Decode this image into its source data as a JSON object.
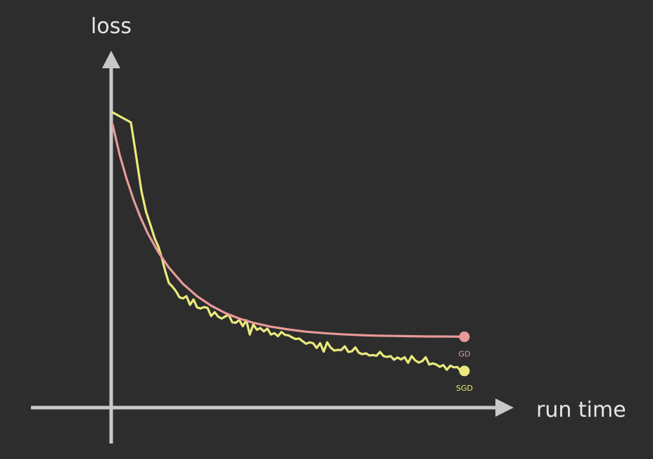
{
  "chart_data": {
    "type": "line",
    "title": "",
    "xlabel": "run time",
    "ylabel": "loss",
    "xlim": [
      0,
      100
    ],
    "ylim": [
      0,
      100
    ],
    "grid": false,
    "legend": "none",
    "background_color": "#2d2d2d",
    "axis_color": "#c8c8c8",
    "series": [
      {
        "name": "GD",
        "color": "#e89a9a",
        "x": [
          0,
          2,
          4,
          6,
          8,
          10,
          13,
          16,
          20,
          24,
          28,
          32,
          36,
          40,
          45,
          50,
          55,
          60,
          65,
          70,
          75,
          80,
          85,
          90,
          95,
          100
        ],
        "y": [
          94.8,
          84.0,
          75.3,
          67.8,
          61.4,
          55.9,
          49.2,
          43.7,
          37.9,
          33.5,
          30.1,
          27.5,
          25.5,
          24.0,
          22.6,
          21.6,
          20.8,
          20.3,
          19.9,
          19.6,
          19.4,
          19.3,
          19.2,
          19.1,
          19.1,
          19.0
        ],
        "endpoint_marker": "dot"
      },
      {
        "name": "SGD",
        "color": "#eaea7c",
        "x": [
          0,
          5.2,
          6.2,
          7.2,
          8.2,
          9.5,
          11,
          12,
          13,
          14,
          15,
          16,
          17,
          18,
          19,
          20,
          21,
          22,
          23,
          24,
          25,
          26,
          27,
          28,
          29,
          30,
          31,
          32,
          33,
          34,
          35,
          36,
          37,
          38,
          39,
          40,
          41,
          42,
          43,
          44,
          45,
          46,
          47,
          48,
          49,
          50,
          51,
          52,
          53,
          54,
          55,
          56,
          57,
          58,
          59,
          60,
          61,
          62,
          63,
          64,
          65,
          66,
          67,
          68,
          69,
          70,
          71,
          72,
          73,
          74,
          75,
          76,
          77,
          78,
          79,
          80,
          81,
          82,
          83,
          84,
          85,
          86,
          87,
          88,
          89,
          90,
          91,
          92,
          93,
          94,
          95,
          96,
          97,
          98,
          99,
          100
        ],
        "y": [
          99.1,
          95.5,
          87.6,
          79.3,
          71.0,
          63.7,
          58.0,
          54.0,
          51.2,
          47.1,
          42.3,
          38.2,
          36.9,
          35.3,
          33.1,
          32.7,
          33.5,
          30.4,
          32.3,
          29.5,
          29.1,
          29.6,
          29.3,
          26.4,
          27.8,
          26.2,
          25.5,
          26.2,
          26.9,
          24.2,
          24.0,
          25.0,
          22.8,
          24.9,
          19.8,
          23.4,
          21.5,
          22.1,
          20.9,
          21.9,
          19.8,
          20.3,
          19.2,
          20.7,
          19.7,
          19.5,
          18.8,
          18.2,
          18.4,
          17.4,
          16.5,
          17.0,
          16.7,
          15.0,
          16.7,
          13.7,
          17.0,
          15.1,
          14.1,
          14.3,
          14.3,
          15.6,
          13.6,
          13.8,
          15.2,
          13.3,
          12.8,
          13.1,
          12.3,
          12.5,
          12.2,
          13.6,
          12.1,
          11.8,
          12.1,
          10.8,
          11.6,
          10.9,
          11.7,
          9.7,
          12.1,
          10.6,
          9.8,
          10.3,
          11.7,
          9.1,
          9.5,
          9.1,
          8.3,
          8.9,
          7.2,
          8.7,
          8.1,
          8.2,
          6.7,
          6.8
        ],
        "endpoint_marker": "dot"
      }
    ]
  }
}
